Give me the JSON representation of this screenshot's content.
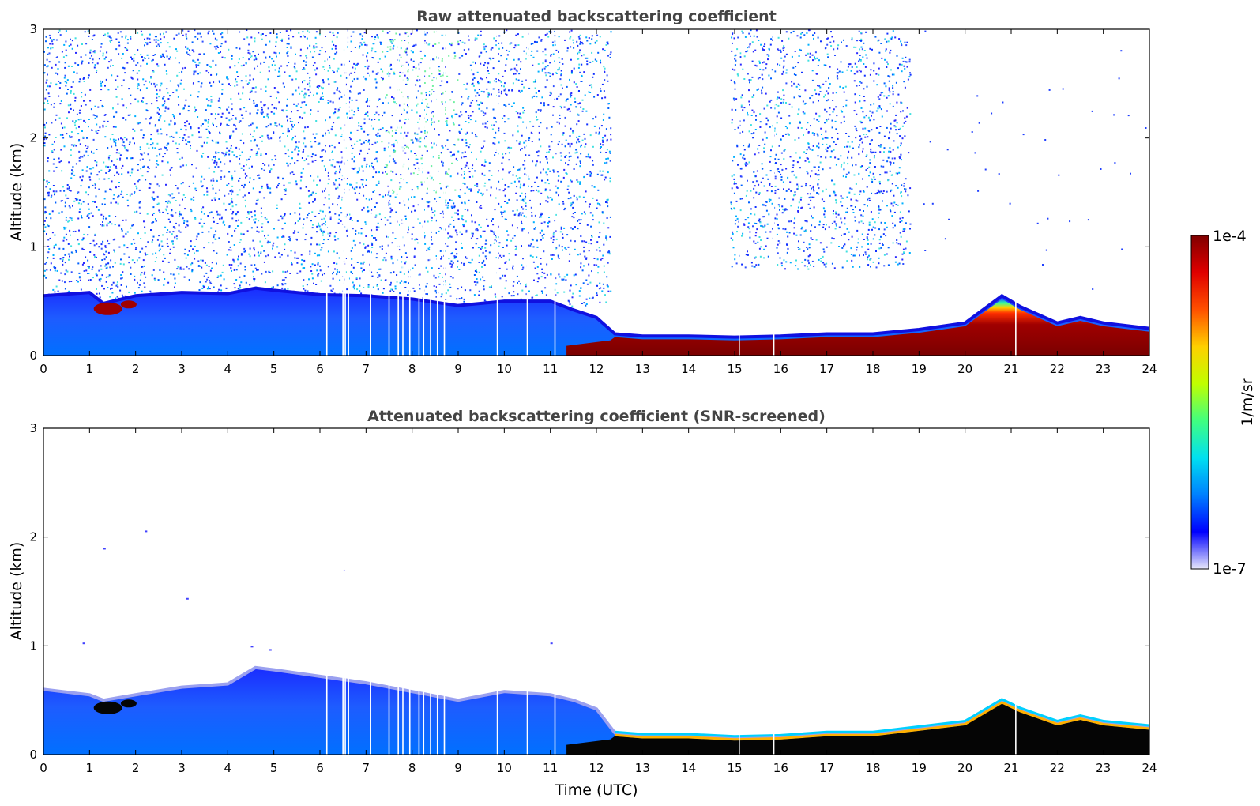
{
  "chart_data": [
    {
      "type": "heatmap",
      "title": "Raw attenuated backscattering coefficient",
      "xlabel": "",
      "ylabel": "Altitude (km)",
      "xlim": [
        0,
        24
      ],
      "ylim": [
        0,
        3
      ],
      "xticks": [
        "0",
        "1",
        "2",
        "3",
        "4",
        "5",
        "6",
        "7",
        "8",
        "9",
        "10",
        "11",
        "12",
        "13",
        "14",
        "15",
        "16",
        "17",
        "18",
        "19",
        "20",
        "21",
        "22",
        "23",
        "24"
      ],
      "yticks": [
        "0",
        "1",
        "2",
        "3"
      ],
      "boundary_layer_top_km": [
        [
          0,
          0.55
        ],
        [
          1,
          0.58
        ],
        [
          1.3,
          0.48
        ],
        [
          2,
          0.55
        ],
        [
          3,
          0.58
        ],
        [
          4,
          0.57
        ],
        [
          4.6,
          0.62
        ],
        [
          5,
          0.6
        ],
        [
          6,
          0.56
        ],
        [
          7,
          0.55
        ],
        [
          8,
          0.52
        ],
        [
          9,
          0.46
        ],
        [
          10,
          0.5
        ],
        [
          11,
          0.5
        ],
        [
          11.5,
          0.42
        ],
        [
          12,
          0.35
        ],
        [
          12.4,
          0.2
        ],
        [
          13,
          0.18
        ],
        [
          14,
          0.18
        ],
        [
          15,
          0.17
        ],
        [
          16,
          0.18
        ],
        [
          17,
          0.2
        ],
        [
          18,
          0.2
        ],
        [
          19,
          0.24
        ],
        [
          20,
          0.3
        ],
        [
          20.8,
          0.55
        ],
        [
          21.2,
          0.45
        ],
        [
          22,
          0.3
        ],
        [
          22.5,
          0.35
        ],
        [
          23,
          0.3
        ],
        [
          24,
          0.25
        ]
      ],
      "noise_regions_hours": [
        [
          0,
          12.3
        ],
        [
          14.9,
          18.8
        ]
      ]
    },
    {
      "type": "heatmap",
      "title": "Attenuated backscattering coefficient (SNR-screened)",
      "xlabel": "Time (UTC)",
      "ylabel": "Altitude (km)",
      "xlim": [
        0,
        24
      ],
      "ylim": [
        0,
        3
      ],
      "xticks": [
        "0",
        "1",
        "2",
        "3",
        "4",
        "5",
        "6",
        "7",
        "8",
        "9",
        "10",
        "11",
        "12",
        "13",
        "14",
        "15",
        "16",
        "17",
        "18",
        "19",
        "20",
        "21",
        "22",
        "23",
        "24"
      ],
      "yticks": [
        "0",
        "1",
        "2",
        "3"
      ],
      "boundary_layer_top_km": [
        [
          0,
          0.6
        ],
        [
          1,
          0.55
        ],
        [
          1.3,
          0.5
        ],
        [
          2,
          0.55
        ],
        [
          3,
          0.62
        ],
        [
          4,
          0.65
        ],
        [
          4.6,
          0.8
        ],
        [
          5,
          0.78
        ],
        [
          6,
          0.72
        ],
        [
          7,
          0.66
        ],
        [
          8,
          0.58
        ],
        [
          9,
          0.5
        ],
        [
          10,
          0.58
        ],
        [
          11,
          0.55
        ],
        [
          11.5,
          0.5
        ],
        [
          12,
          0.42
        ],
        [
          12.4,
          0.2
        ],
        [
          13,
          0.18
        ],
        [
          14,
          0.18
        ],
        [
          15,
          0.16
        ],
        [
          16,
          0.17
        ],
        [
          17,
          0.2
        ],
        [
          18,
          0.2
        ],
        [
          19,
          0.25
        ],
        [
          20,
          0.3
        ],
        [
          20.8,
          0.5
        ],
        [
          21.2,
          0.42
        ],
        [
          22,
          0.3
        ],
        [
          22.5,
          0.35
        ],
        [
          23,
          0.3
        ],
        [
          24,
          0.26
        ]
      ]
    }
  ],
  "colorbar": {
    "max_label": "1e-4",
    "min_label": "1e-7",
    "unit_label": "1/m/sr",
    "stops": [
      "#e8e8fa",
      "#0000ff",
      "#0080ff",
      "#00e0f0",
      "#40ff80",
      "#c0ff00",
      "#ffd000",
      "#ff5000",
      "#e00000",
      "#800000"
    ]
  }
}
